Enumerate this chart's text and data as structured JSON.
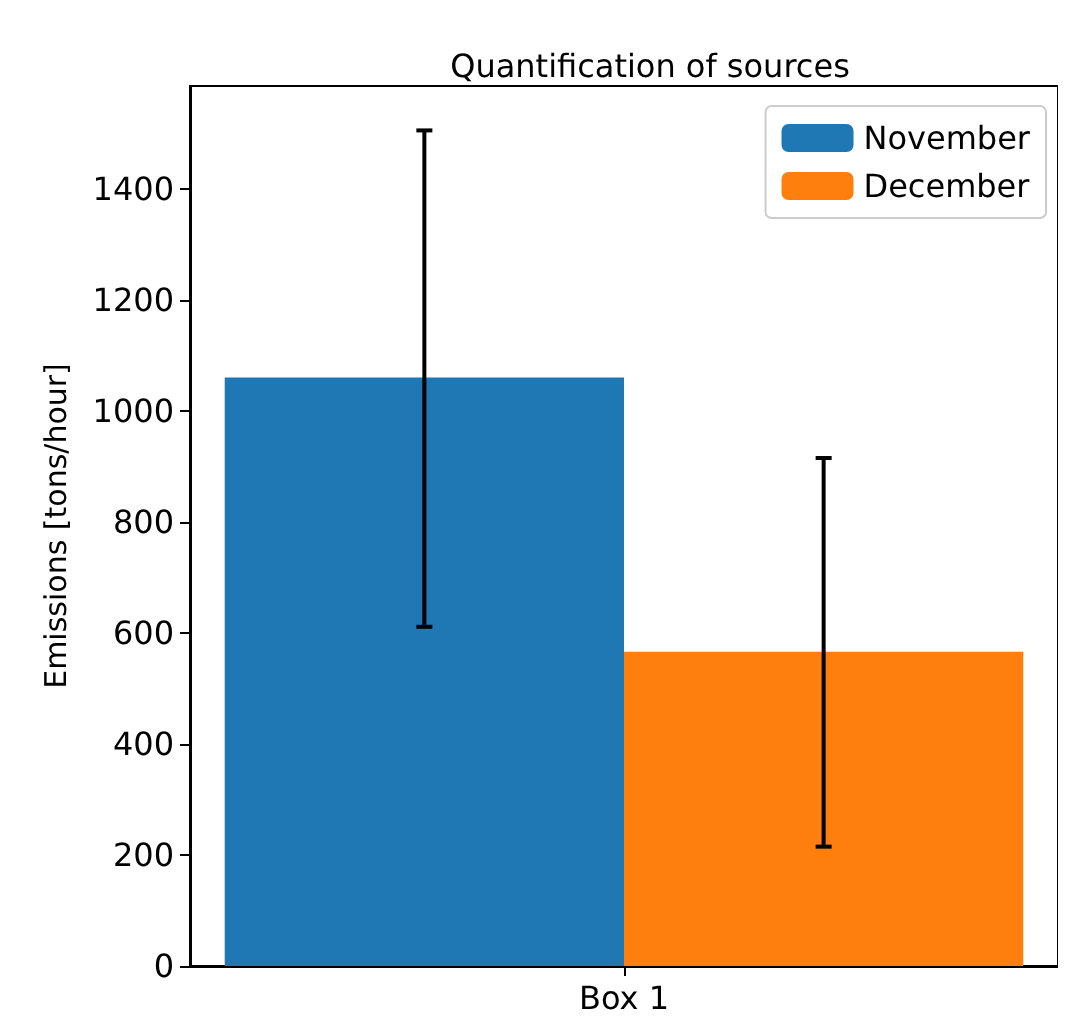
{
  "chart_data": {
    "type": "bar",
    "title": "Quantification of sources",
    "ylabel": "Emissions [tons/hour]",
    "categories": [
      "Box 1"
    ],
    "series": [
      {
        "name": "November",
        "color": "#1f77b4",
        "values": [
          1060
        ],
        "errors": [
          [
            611,
            1505
          ]
        ]
      },
      {
        "name": "December",
        "color": "#ff7f0e",
        "values": [
          566
        ],
        "errors": [
          [
            215,
            915
          ]
        ]
      }
    ],
    "ylim": [
      0,
      1585
    ],
    "yticks": [
      0,
      200,
      400,
      600,
      800,
      1000,
      1200,
      1400
    ],
    "grid": false,
    "legend": "top right"
  }
}
